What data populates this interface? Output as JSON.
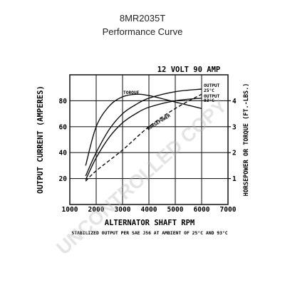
{
  "header": {
    "model": "8MR2035T",
    "subtitle": "Performance Curve"
  },
  "watermark": "UNCONTROLLED COPY",
  "chart_data": {
    "type": "line",
    "title": "12 VOLT 90 AMP",
    "xlabel": "ALTERNATOR SHAFT RPM",
    "ylabel": "OUTPUT CURRENT (AMPERES)",
    "y2label": "HORSEPOWER OR TORQUE (FT.-LBS.)",
    "footnote": "STABILIZED OUTPUT PER SAE J56 AT AMBIENT OF 25°C AND 93°C",
    "xlim": [
      1000,
      7000
    ],
    "ylim": [
      0,
      100
    ],
    "y2lim": [
      0,
      5
    ],
    "x_ticks": [
      1000,
      2000,
      3000,
      4000,
      5000,
      6000,
      7000
    ],
    "x_tick_labels": [
      "1000",
      "2000",
      "3000",
      "4000",
      "5000",
      "6000",
      "7000"
    ],
    "y_ticks": [
      20,
      40,
      60,
      80
    ],
    "y_tick_labels": [
      "20",
      "40",
      "60",
      "80"
    ],
    "y2_ticks": [
      1,
      2,
      3,
      4
    ],
    "y2_tick_labels": [
      "1",
      "2",
      "3",
      "4"
    ],
    "grid": true,
    "series": [
      {
        "name": "TORQUE",
        "axis": "right",
        "style": "solid",
        "x": [
          1600,
          2000,
          2500,
          3000,
          3500,
          4000,
          5000,
          6000
        ],
        "y": [
          1.5,
          3.0,
          3.8,
          4.15,
          4.25,
          4.2,
          3.95,
          3.7
        ]
      },
      {
        "name": "OUTPUT 25°C",
        "axis": "left",
        "style": "solid",
        "x": [
          1600,
          2000,
          2500,
          3000,
          3500,
          4000,
          5000,
          6000
        ],
        "y": [
          22,
          40,
          58,
          70,
          77,
          82,
          87,
          89
        ]
      },
      {
        "name": "OUTPUT 93°C",
        "axis": "left",
        "style": "solid",
        "x": [
          1600,
          2000,
          2500,
          3000,
          3500,
          4000,
          5000,
          6000
        ],
        "y": [
          19,
          36,
          52,
          63,
          70,
          75,
          80,
          82
        ]
      },
      {
        "name": "HORSEPOWER",
        "axis": "right",
        "style": "dashed",
        "x": [
          1600,
          2000,
          3000,
          4000,
          5000,
          6000
        ],
        "y": [
          0.9,
          1.3,
          2.1,
          3.0,
          3.7,
          4.25
        ]
      }
    ]
  }
}
